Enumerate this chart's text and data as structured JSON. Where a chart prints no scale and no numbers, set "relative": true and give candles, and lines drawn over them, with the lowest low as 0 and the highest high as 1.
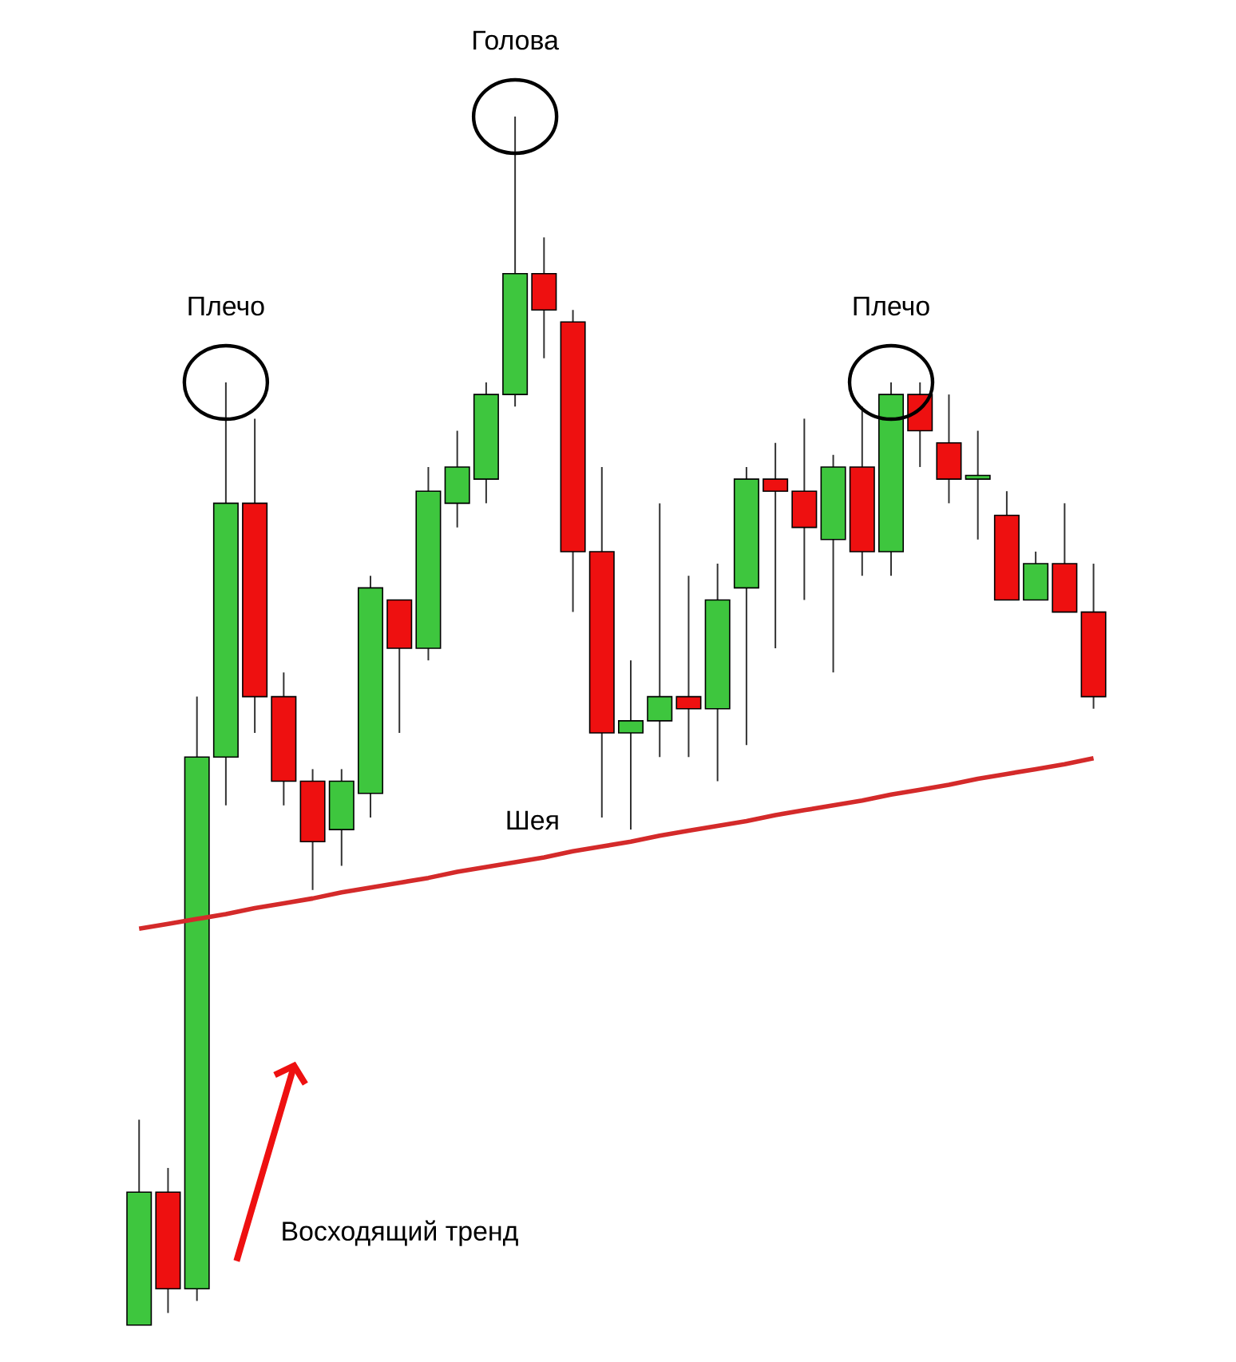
{
  "chart_data": {
    "type": "candlestick",
    "relative": true,
    "categories": [
      null,
      null,
      null,
      null,
      null,
      null,
      null,
      null,
      null,
      null,
      null,
      null,
      null,
      null,
      null,
      null,
      null,
      null,
      null,
      null,
      null,
      null,
      null,
      null,
      null,
      null,
      null,
      null,
      null,
      null,
      null,
      null,
      null,
      null
    ],
    "ohlc": [
      [
        0,
        0.17,
        0,
        0.11
      ],
      [
        0.11,
        0.13,
        0.01,
        0.03
      ],
      [
        0.03,
        0.52,
        0.02,
        0.47
      ],
      [
        0.47,
        0.78,
        0.43,
        0.68
      ],
      [
        0.68,
        0.75,
        0.49,
        0.52
      ],
      [
        0.52,
        0.54,
        0.43,
        0.45
      ],
      [
        0.45,
        0.46,
        0.36,
        0.4
      ],
      [
        0.41,
        0.46,
        0.38,
        0.45
      ],
      [
        0.44,
        0.62,
        0.42,
        0.61
      ],
      [
        0.6,
        0.6,
        0.49,
        0.56
      ],
      [
        0.56,
        0.71,
        0.55,
        0.69
      ],
      [
        0.68,
        0.74,
        0.66,
        0.71
      ],
      [
        0.7,
        0.78,
        0.68,
        0.77
      ],
      [
        0.77,
        1,
        0.76,
        0.87
      ],
      [
        0.87,
        0.9,
        0.8,
        0.84
      ],
      [
        0.83,
        0.84,
        0.59,
        0.64
      ],
      [
        0.64,
        0.71,
        0.42,
        0.49
      ],
      [
        0.49,
        0.55,
        0.41,
        0.5
      ],
      [
        0.5,
        0.68,
        0.47,
        0.52
      ],
      [
        0.52,
        0.62,
        0.47,
        0.51
      ],
      [
        0.51,
        0.63,
        0.45,
        0.6
      ],
      [
        0.61,
        0.71,
        0.48,
        0.7
      ],
      [
        0.7,
        0.73,
        0.56,
        0.69
      ],
      [
        0.69,
        0.75,
        0.6,
        0.66
      ],
      [
        0.65,
        0.72,
        0.54,
        0.71
      ],
      [
        0.71,
        0.76,
        0.62,
        0.64
      ],
      [
        0.64,
        0.78,
        0.62,
        0.77
      ],
      [
        0.77,
        0.78,
        0.71,
        0.74
      ],
      [
        0.73,
        0.77,
        0.68,
        0.7
      ],
      [
        0.7,
        0.74,
        0.65,
        0.703
      ],
      [
        0.67,
        0.69,
        0.6,
        0.6
      ],
      [
        0.6,
        0.64,
        0.6,
        0.63
      ],
      [
        0.63,
        0.68,
        0.59,
        0.59
      ],
      [
        0.59,
        0.63,
        0.51,
        0.52
      ]
    ],
    "colors": [
      "#3ec63e",
      "#ee1010",
      "#3ec63e",
      "#3ec63e",
      "#ee1010",
      "#ee1010",
      "#ee1010",
      "#3ec63e",
      "#3ec63e",
      "#ee1010",
      "#3ec63e",
      "#3ec63e",
      "#3ec63e",
      "#3ec63e",
      "#ee1010",
      "#ee1010",
      "#ee1010",
      "#3ec63e",
      "#3ec63e",
      "#ee1010",
      "#3ec63e",
      "#3ec63e",
      "#ee1010",
      "#ee1010",
      "#3ec63e",
      "#ee1010",
      "#3ec63e",
      "#ee1010",
      "#ee1010",
      "#3ec63e",
      "#ee1010",
      "#3ec63e",
      "#ee1010",
      "#ee1010"
    ],
    "series": [
      {
        "type": "line",
        "values": [
          0.328,
          0.332,
          0.336,
          0.34,
          0.345,
          0.349,
          0.353,
          0.358,
          0.362,
          0.366,
          0.37,
          0.375,
          0.379,
          0.383,
          0.387,
          0.392,
          0.396,
          0.4,
          0.405,
          0.409,
          0.413,
          0.417,
          0.422,
          0.426,
          0.43,
          0.434,
          0.439,
          0.443,
          0.447,
          0.452,
          0.456,
          0.46,
          0.464,
          0.469
        ],
        "color": "#d42a2a"
      }
    ],
    "annotations": [
      "Голова",
      "Плечо",
      "Плечо",
      "Шея",
      "Восходящий тренд"
    ]
  }
}
